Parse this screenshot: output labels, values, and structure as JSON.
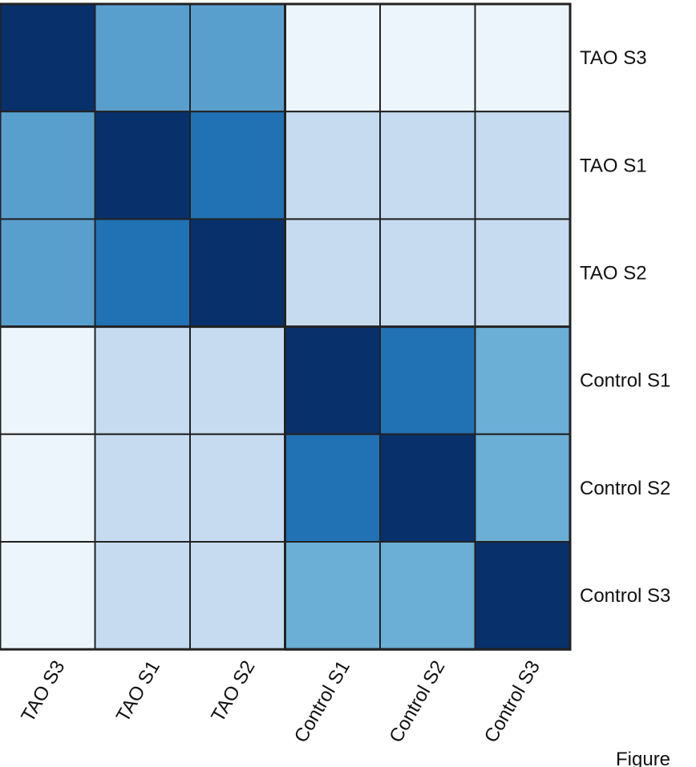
{
  "chart_data": {
    "type": "heatmap",
    "rows": [
      "TAO S3",
      "TAO S1",
      "TAO S2",
      "Control S1",
      "Control S2",
      "Control S3"
    ],
    "columns": [
      "TAO S3",
      "TAO S1",
      "TAO S2",
      "Control S1",
      "Control S2",
      "Control S3"
    ],
    "values": [
      [
        1.0,
        0.6,
        0.6,
        0.05,
        0.05,
        0.05
      ],
      [
        0.6,
        1.0,
        0.75,
        0.25,
        0.25,
        0.25
      ],
      [
        0.6,
        0.75,
        1.0,
        0.25,
        0.25,
        0.25
      ],
      [
        0.05,
        0.25,
        0.25,
        1.0,
        0.75,
        0.55
      ],
      [
        0.05,
        0.25,
        0.25,
        0.75,
        1.0,
        0.55
      ],
      [
        0.05,
        0.25,
        0.25,
        0.55,
        0.55,
        1.0
      ]
    ],
    "color_scale": {
      "low": "#f7fbff",
      "mid_low": "#c6dbef",
      "mid": "#6baed6",
      "mid_high": "#2171b5",
      "high": "#08306b"
    },
    "cell_border_color": "#222222",
    "title": "",
    "xlabel": "",
    "ylabel": "",
    "legend": "none",
    "grid": true
  },
  "caption": "Figure"
}
